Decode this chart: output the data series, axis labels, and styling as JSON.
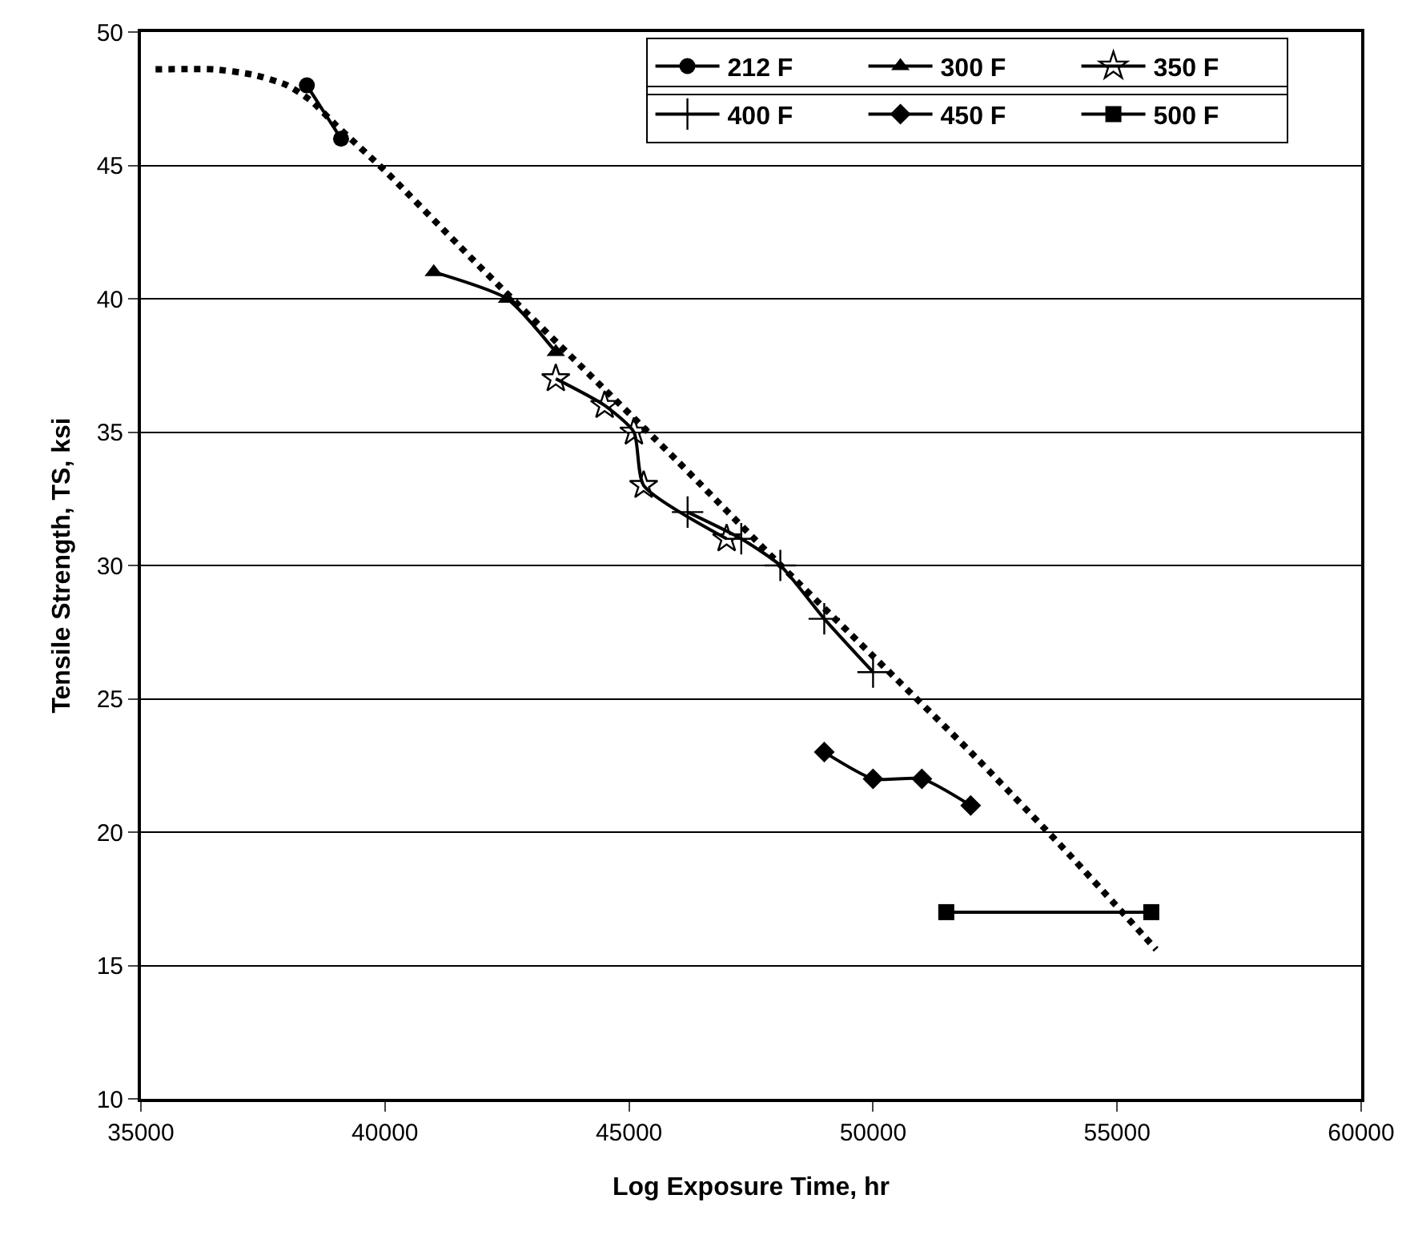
{
  "chart_data": {
    "type": "line",
    "xlabel": "Log Exposure Time, hr",
    "ylabel": "Tensile Strength, TS, ksi",
    "xlim": [
      35000,
      60000
    ],
    "xticks": [
      35000,
      40000,
      45000,
      50000,
      55000,
      60000
    ],
    "ylim": [
      10,
      50
    ],
    "yticks": [
      10,
      15,
      20,
      25,
      30,
      35,
      40,
      45,
      50
    ],
    "grid": "y",
    "legend": "top right",
    "series": [
      {
        "name": "212 F",
        "color": "#000000",
        "marker": "circle",
        "x": [
          38400,
          39100
        ],
        "values": [
          48,
          46
        ]
      },
      {
        "name": "300 F",
        "color": "#000000",
        "marker": "triangle",
        "x": [
          41000,
          42500,
          43500
        ],
        "values": [
          41,
          40,
          38
        ]
      },
      {
        "name": "350 F",
        "color": "#000000",
        "marker": "star",
        "x": [
          43500,
          44500,
          45100,
          45300,
          47000
        ],
        "values": [
          37,
          36,
          35,
          33,
          31
        ]
      },
      {
        "name": "400 F",
        "color": "#000000",
        "marker": "cross",
        "x": [
          46200,
          47300,
          48100,
          49000,
          50000
        ],
        "values": [
          32,
          31,
          30,
          28,
          26
        ]
      },
      {
        "name": "450 F",
        "color": "#000000",
        "marker": "diamond",
        "x": [
          49000,
          50000,
          51000,
          52000
        ],
        "values": [
          23,
          22,
          22,
          21
        ]
      },
      {
        "name": "500 F",
        "color": "#000000",
        "marker": "square",
        "x": [
          51500,
          55700
        ],
        "values": [
          17,
          17
        ]
      },
      {
        "type": "line",
        "color": "#000000",
        "marker": "none",
        "line_style": "dotted",
        "x": [
          35300,
          36500,
          37300,
          38000,
          38500,
          39000,
          40000,
          42000,
          44000,
          46000,
          48000,
          50000,
          52000,
          54000,
          55800
        ],
        "values": [
          48.6,
          48.6,
          48.4,
          48.0,
          47.4,
          46.5,
          44.8,
          41.1,
          37.5,
          33.9,
          30.2,
          26.6,
          23.0,
          19.2,
          15.6
        ]
      }
    ]
  }
}
